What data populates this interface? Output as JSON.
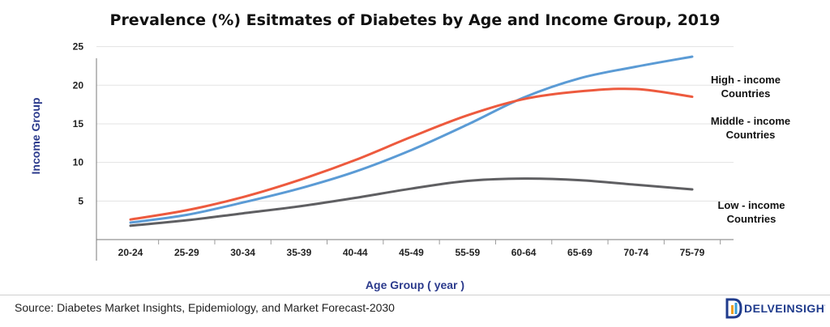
{
  "chart_data": {
    "type": "line",
    "title": "Prevalence (%) Esitmates of Diabetes by Age and Income Group, 2019",
    "xlabel": "Age Group ( year )",
    "ylabel": "Income Group",
    "categories": [
      "20-24",
      "25-29",
      "30-34",
      "35-39",
      "40-44",
      "45-49",
      "55-59",
      "60-64",
      "65-69",
      "70-74",
      "75-79"
    ],
    "yticks": [
      5,
      10,
      15,
      20,
      25
    ],
    "ylim": [
      0,
      27
    ],
    "grid": "horizontal",
    "series": [
      {
        "name": "High - income Countries",
        "label_lines": [
          "High - income",
          "Countries"
        ],
        "color": "#5b9bd5",
        "values": [
          2.2,
          3.2,
          4.8,
          6.6,
          8.8,
          11.6,
          14.9,
          18.4,
          20.9,
          22.4,
          23.7
        ]
      },
      {
        "name": "Middle - income Countries",
        "label_lines": [
          "Middle - income",
          "Countries"
        ],
        "color": "#ed5a3e",
        "values": [
          2.6,
          3.8,
          5.5,
          7.7,
          10.3,
          13.3,
          16.1,
          18.2,
          19.2,
          19.5,
          18.5
        ]
      },
      {
        "name": "Low - income Countries",
        "label_lines": [
          "Low - income",
          "Countries"
        ],
        "color": "#5f5f62",
        "values": [
          1.8,
          2.5,
          3.4,
          4.3,
          5.4,
          6.6,
          7.6,
          7.9,
          7.7,
          7.1,
          6.5
        ]
      }
    ]
  },
  "footer": {
    "source": "Source: Diabetes Market Insights, Epidemiology, and Market Forecast-2030",
    "logo_text": "DELVEINSIGHT",
    "logo_colors": [
      "#1f3b8c",
      "#f0a020",
      "#3aa0d8"
    ]
  }
}
